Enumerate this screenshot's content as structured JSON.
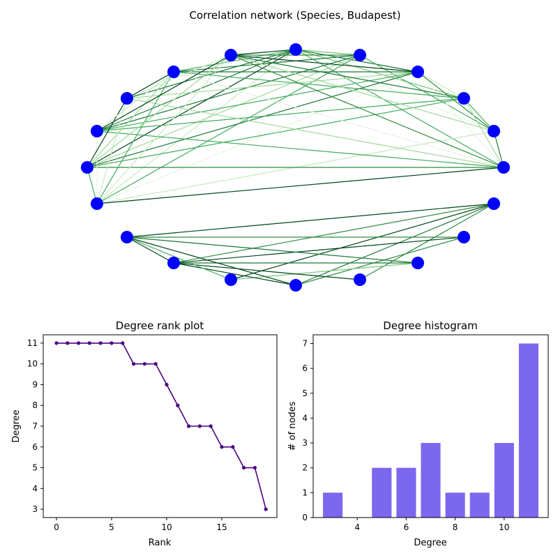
{
  "colors": {
    "node": "#0000ff",
    "edge_strong": "#00441b",
    "edge_weak": "#e8f6e4",
    "rank_line": "#4b0082",
    "hist_bar": "#7b68ee"
  },
  "chart_data": [
    {
      "type": "network",
      "title": "Correlation network (Species, Budapest)",
      "node_count": 20,
      "components": [
        {
          "nodes": 12,
          "description_visible": "upper ring, densely connected"
        },
        {
          "nodes": 8,
          "description_visible": "lower ring"
        }
      ]
    },
    {
      "type": "line",
      "title": "Degree rank plot",
      "xlabel": "Rank",
      "ylabel": "Degree",
      "x": [
        0,
        1,
        2,
        3,
        4,
        5,
        6,
        7,
        8,
        9,
        10,
        11,
        12,
        13,
        14,
        15,
        16,
        17,
        18,
        19
      ],
      "values": [
        11,
        11,
        11,
        11,
        11,
        11,
        11,
        10,
        10,
        10,
        9,
        8,
        7,
        7,
        7,
        6,
        6,
        5,
        5,
        3
      ],
      "xlim": [
        -1.2,
        20
      ],
      "ylim": [
        2.6,
        11.4
      ],
      "xticks": [
        "0",
        "5",
        "10",
        "15"
      ],
      "yticks": [
        "3",
        "4",
        "5",
        "6",
        "7",
        "8",
        "9",
        "10",
        "11"
      ],
      "grid": false
    },
    {
      "type": "bar",
      "title": "Degree histogram",
      "xlabel": "Degree",
      "ylabel": "# of nodes",
      "categories": [
        3,
        5,
        6,
        7,
        8,
        9,
        10,
        11
      ],
      "values": [
        1,
        2,
        2,
        3,
        1,
        1,
        3,
        7
      ],
      "xlim": [
        2.2,
        11.8
      ],
      "ylim": [
        0,
        7.35
      ],
      "xticks": [
        "4",
        "6",
        "8",
        "10"
      ],
      "yticks": [
        "0",
        "1",
        "2",
        "3",
        "4",
        "5",
        "6",
        "7"
      ],
      "grid": false
    }
  ]
}
